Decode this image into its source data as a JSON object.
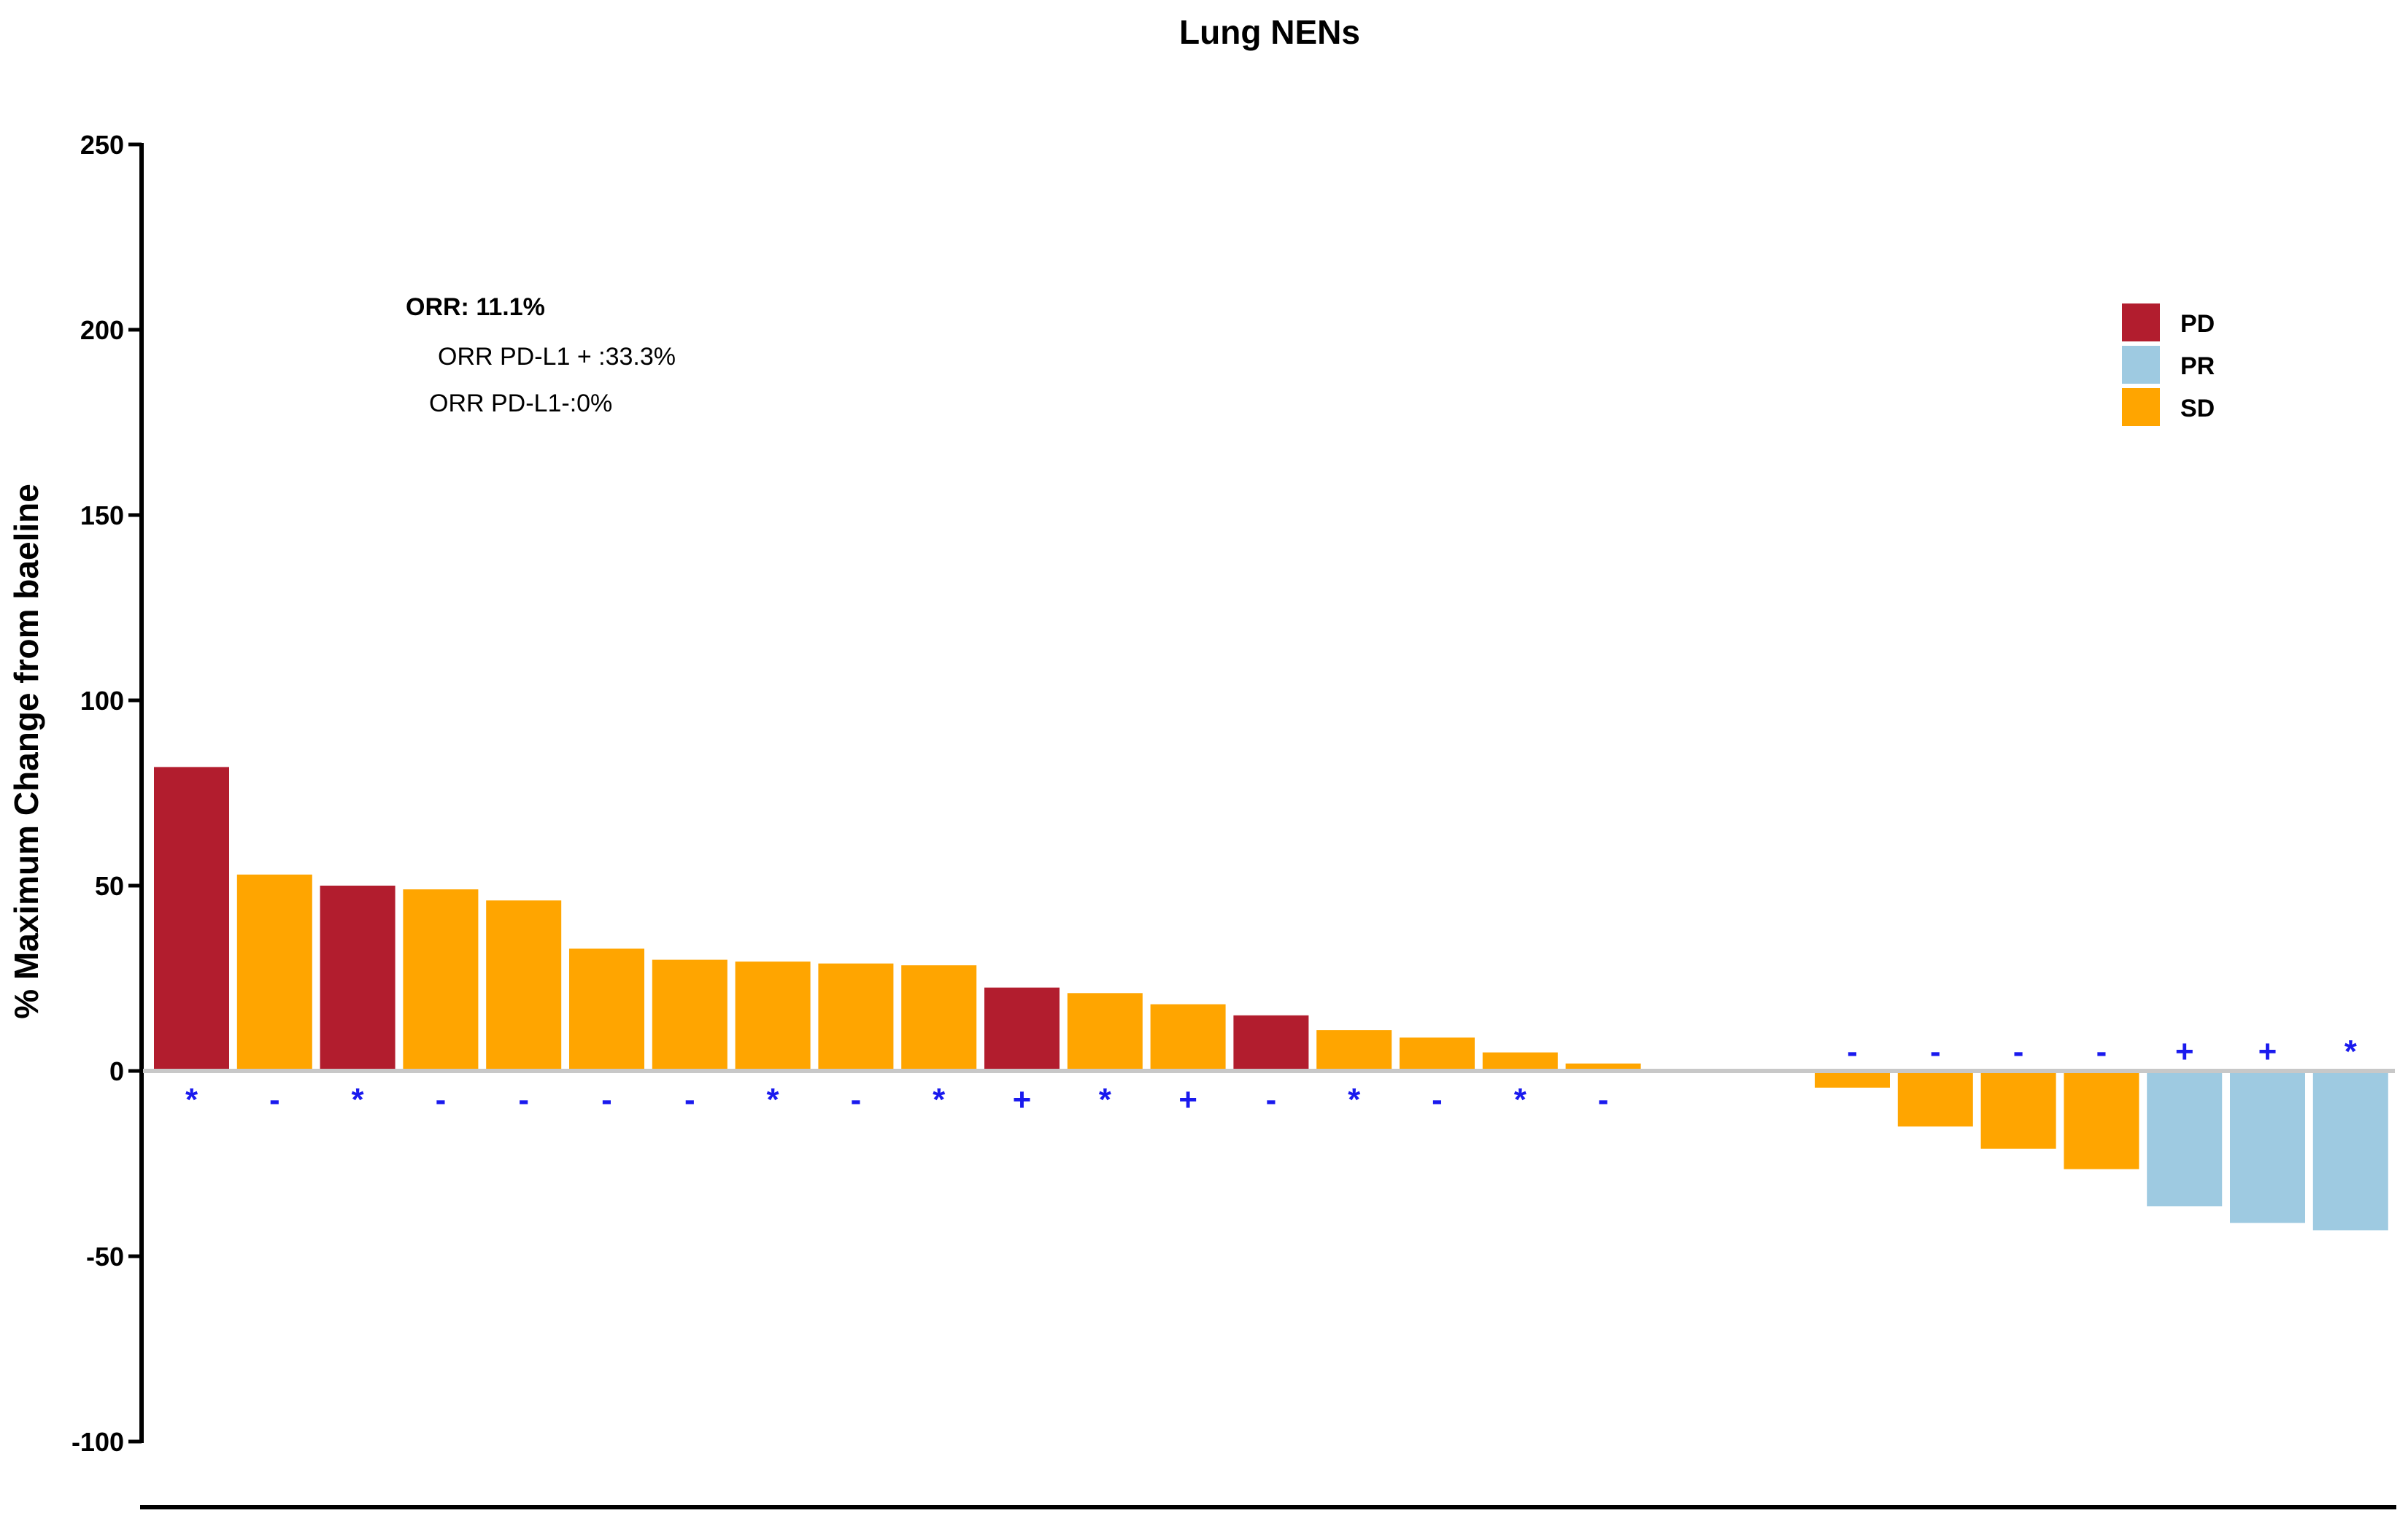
{
  "chart_data": {
    "type": "bar",
    "title": "Lung NENs",
    "ylabel": "% Maximum Change from baeline",
    "xlabel": "",
    "ylim": [
      -100,
      250
    ],
    "yticks": [
      -100,
      -50,
      0,
      50,
      100,
      150,
      200,
      250
    ],
    "grid": false,
    "legend_position": "top-right",
    "legend": [
      {
        "label": "PD",
        "color": "#b21d2e"
      },
      {
        "label": "PR",
        "color": "#9ecae1"
      },
      {
        "label": "SD",
        "color": "#ffa500"
      }
    ],
    "annotations": [
      {
        "text": "ORR: 11.1%",
        "bold": true
      },
      {
        "text": "ORR PD-L1 + :33.3%",
        "bold": false
      },
      {
        "text": "ORR PD-L1-:0%",
        "bold": false
      }
    ],
    "bars": [
      {
        "value": 82,
        "response": "PD",
        "marker": "*"
      },
      {
        "value": 53,
        "response": "SD",
        "marker": "-"
      },
      {
        "value": 50,
        "response": "PD",
        "marker": "*"
      },
      {
        "value": 49,
        "response": "SD",
        "marker": "-"
      },
      {
        "value": 46,
        "response": "SD",
        "marker": "-"
      },
      {
        "value": 33,
        "response": "SD",
        "marker": "-"
      },
      {
        "value": 30,
        "response": "SD",
        "marker": "-"
      },
      {
        "value": 29.5,
        "response": "SD",
        "marker": "*"
      },
      {
        "value": 29,
        "response": "SD",
        "marker": "-"
      },
      {
        "value": 28.5,
        "response": "SD",
        "marker": "*"
      },
      {
        "value": 22.5,
        "response": "PD",
        "marker": "+"
      },
      {
        "value": 21,
        "response": "SD",
        "marker": "*"
      },
      {
        "value": 18,
        "response": "SD",
        "marker": "+"
      },
      {
        "value": 15,
        "response": "PD",
        "marker": "-"
      },
      {
        "value": 11,
        "response": "SD",
        "marker": "*"
      },
      {
        "value": 9,
        "response": "SD",
        "marker": "-"
      },
      {
        "value": 5,
        "response": "SD",
        "marker": "*"
      },
      {
        "value": 2,
        "response": "SD",
        "marker": "-"
      },
      {
        "value": null,
        "response": "",
        "marker": ""
      },
      {
        "value": null,
        "response": "",
        "marker": ""
      },
      {
        "value": -4.5,
        "response": "SD",
        "marker": "-"
      },
      {
        "value": -15,
        "response": "SD",
        "marker": "-"
      },
      {
        "value": -21,
        "response": "SD",
        "marker": "-"
      },
      {
        "value": -26.5,
        "response": "SD",
        "marker": "-"
      },
      {
        "value": -36.5,
        "response": "PR",
        "marker": "+"
      },
      {
        "value": -41,
        "response": "PR",
        "marker": "+"
      },
      {
        "value": -43,
        "response": "PR",
        "marker": "*"
      }
    ]
  }
}
